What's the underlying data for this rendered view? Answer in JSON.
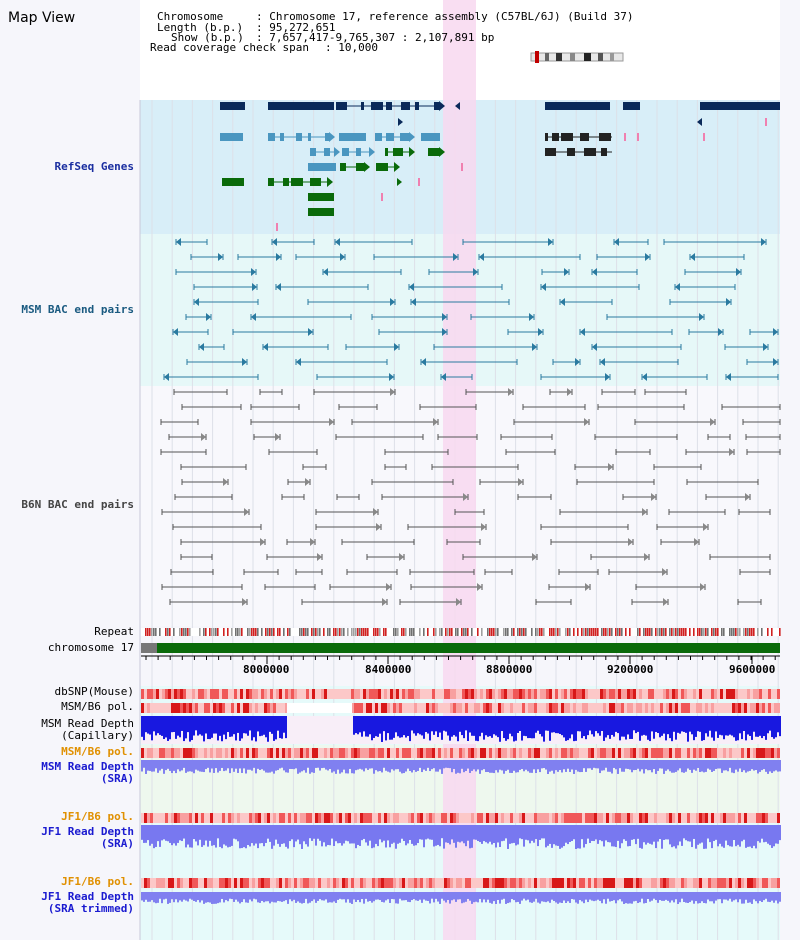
{
  "panel_title": "Map View",
  "info": {
    "chromosome_key": "Chromosome",
    "chromosome_value": ": Chromosome 17, reference assembly (C57BL/6J) (Build 37)",
    "length_key": "Length (b.p.)",
    "length_value": ": 95,272,651",
    "show_key": "Show (b.p.)",
    "show_value": ": 7,657,417-9,765,307 : 2,107,891 bp",
    "coverage_key": "Read coverage check span",
    "coverage_value": ": 10,000"
  },
  "tracks": {
    "refseq": "RefSeq Genes",
    "msm_bac": "MSM BAC end pairs",
    "b6n_bac": "B6N BAC end pairs",
    "repeat": "Repeat",
    "chromosome": "chromosome 17",
    "dbsnp": "dbSNP(Mouse)",
    "msm_b6_pol_1": "MSM/B6 pol.",
    "msm_read_cap_1": "MSM Read Depth",
    "msm_read_cap_2": "(Capillary)",
    "msm_b6_pol_2": "MSM/B6 pol.",
    "msm_read_sra_1": "MSM Read Depth",
    "msm_read_sra_2": "(SRA)",
    "jf1_pol_1": "JF1/B6 pol.",
    "jf1_read_1": "JF1 Read Depth",
    "jf1_read_2": "(SRA)",
    "jf1_pol_2": "JF1/B6 pol.",
    "jf1_trim_1": "JF1 Read Depth",
    "jf1_trim_2": "(SRA trimmed)"
  },
  "axis_ticks": [
    "8000000",
    "8400000",
    "8800000",
    "9200000",
    "9600000"
  ],
  "colors": {
    "refseq_bg": "#d8eef8",
    "msm_bg": "#e6f8f8",
    "highlight": "#f8d8f0",
    "refseq_label": "#1a2ea0",
    "msm_label": "#1a5a80",
    "b6n_label": "#444444",
    "orange_label": "#e09000",
    "blue_label": "#1a1ad0",
    "gene_navy": "#0a2a5a",
    "gene_teal": "#4a96c0",
    "gene_green": "#0a6a0a",
    "chrom_green": "#0a6a0a"
  }
}
